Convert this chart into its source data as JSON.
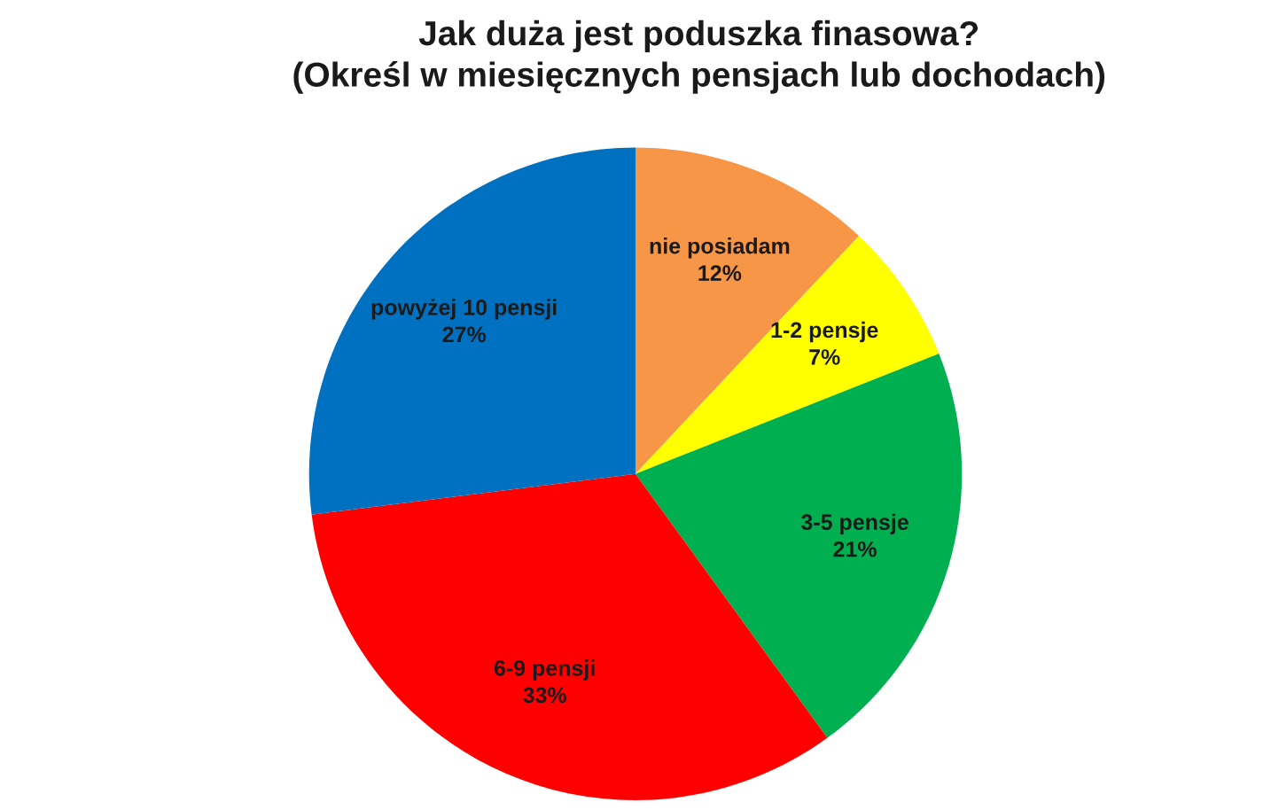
{
  "chart_data": {
    "type": "pie",
    "title": "Jak duża jest poduszka finasowa?\n(Określ w miesięcznych pensjach lub dochodach)",
    "categories": [
      "nie posiadam",
      "1-2 pensje",
      "3-5 pensje",
      "6-9 pensji",
      "powyżej 10 pensji"
    ],
    "values": [
      12,
      7,
      21,
      33,
      27
    ],
    "colors": [
      "#f79646",
      "#ffff00",
      "#00b050",
      "#ff0000",
      "#0070c0"
    ],
    "value_labels": [
      "12%",
      "7%",
      "21%",
      "33%",
      "27%"
    ]
  }
}
